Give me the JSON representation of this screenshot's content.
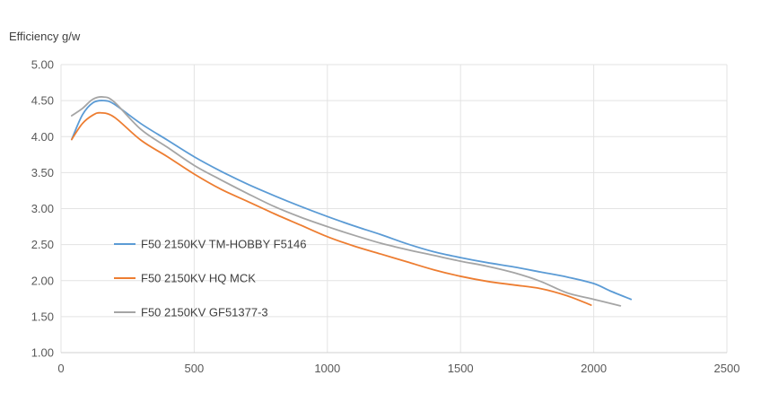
{
  "chart_data": {
    "type": "line",
    "title": "",
    "ylabel": "Efficiency g/w",
    "xlabel": "",
    "xlim": [
      0,
      2500
    ],
    "ylim": [
      1.0,
      5.0
    ],
    "x_ticks": [
      "0",
      "500",
      "1000",
      "1500",
      "2000",
      "2500"
    ],
    "y_ticks": [
      "1.00",
      "1.50",
      "2.00",
      "2.50",
      "3.00",
      "3.50",
      "4.00",
      "4.50",
      "5.00"
    ],
    "grid": true,
    "legend_position": "center-left",
    "series": [
      {
        "name": "F50 2150KV TM-HOBBY F5146",
        "color": "#5B9BD5",
        "points": [
          [
            40,
            3.96
          ],
          [
            80,
            4.3
          ],
          [
            120,
            4.47
          ],
          [
            160,
            4.5
          ],
          [
            200,
            4.45
          ],
          [
            300,
            4.18
          ],
          [
            400,
            3.95
          ],
          [
            500,
            3.72
          ],
          [
            600,
            3.52
          ],
          [
            700,
            3.34
          ],
          [
            800,
            3.18
          ],
          [
            900,
            3.03
          ],
          [
            1000,
            2.89
          ],
          [
            1100,
            2.76
          ],
          [
            1200,
            2.64
          ],
          [
            1300,
            2.51
          ],
          [
            1400,
            2.4
          ],
          [
            1500,
            2.32
          ],
          [
            1600,
            2.25
          ],
          [
            1700,
            2.19
          ],
          [
            1800,
            2.12
          ],
          [
            1900,
            2.05
          ],
          [
            2000,
            1.96
          ],
          [
            2060,
            1.86
          ],
          [
            2140,
            1.74
          ]
        ]
      },
      {
        "name": "F50 2150KV HQ MCK",
        "color": "#ED7D31",
        "points": [
          [
            40,
            3.96
          ],
          [
            80,
            4.18
          ],
          [
            120,
            4.3
          ],
          [
            150,
            4.33
          ],
          [
            200,
            4.27
          ],
          [
            300,
            3.95
          ],
          [
            400,
            3.72
          ],
          [
            500,
            3.48
          ],
          [
            600,
            3.27
          ],
          [
            700,
            3.1
          ],
          [
            800,
            2.93
          ],
          [
            900,
            2.77
          ],
          [
            1000,
            2.61
          ],
          [
            1100,
            2.48
          ],
          [
            1200,
            2.37
          ],
          [
            1300,
            2.26
          ],
          [
            1400,
            2.15
          ],
          [
            1500,
            2.06
          ],
          [
            1600,
            1.99
          ],
          [
            1700,
            1.94
          ],
          [
            1800,
            1.89
          ],
          [
            1900,
            1.79
          ],
          [
            1990,
            1.66
          ]
        ]
      },
      {
        "name": "F50 2150KV GF51377-3",
        "color": "#A5A5A5",
        "points": [
          [
            40,
            4.29
          ],
          [
            80,
            4.39
          ],
          [
            120,
            4.52
          ],
          [
            160,
            4.55
          ],
          [
            200,
            4.48
          ],
          [
            300,
            4.1
          ],
          [
            400,
            3.85
          ],
          [
            500,
            3.6
          ],
          [
            600,
            3.4
          ],
          [
            700,
            3.21
          ],
          [
            800,
            3.03
          ],
          [
            900,
            2.88
          ],
          [
            1000,
            2.75
          ],
          [
            1100,
            2.63
          ],
          [
            1200,
            2.52
          ],
          [
            1300,
            2.43
          ],
          [
            1400,
            2.35
          ],
          [
            1500,
            2.27
          ],
          [
            1600,
            2.2
          ],
          [
            1700,
            2.11
          ],
          [
            1800,
            1.99
          ],
          [
            1900,
            1.83
          ],
          [
            2000,
            1.74
          ],
          [
            2100,
            1.65
          ]
        ]
      }
    ]
  }
}
